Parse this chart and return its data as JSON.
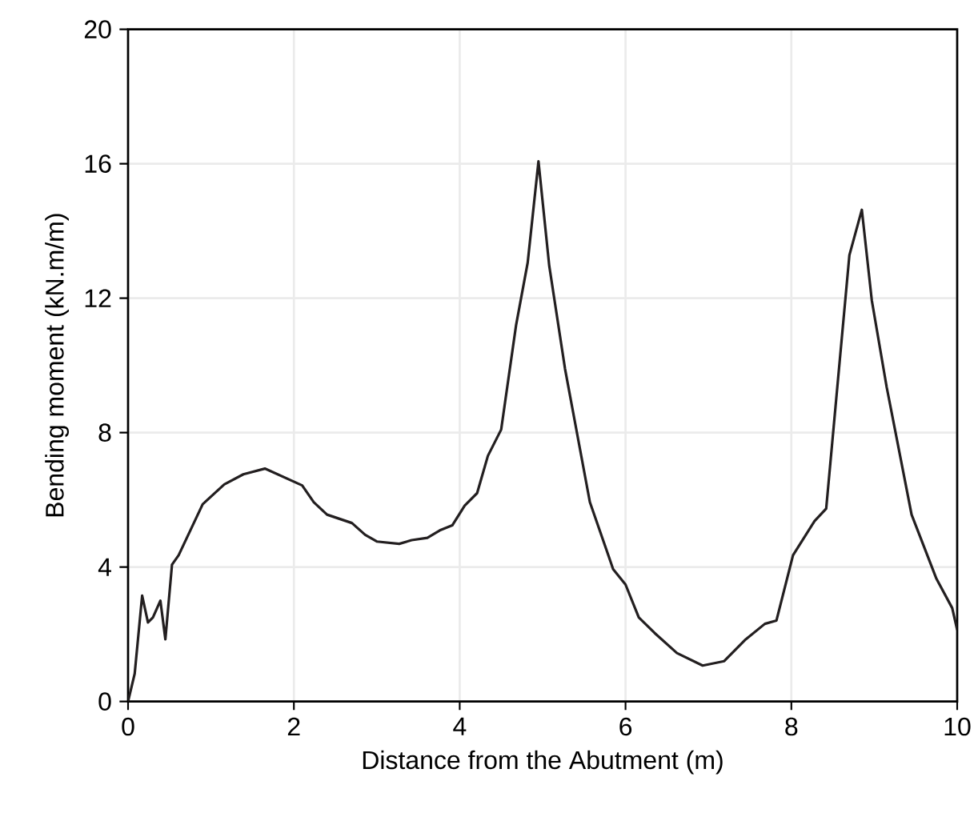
{
  "chart_data": {
    "type": "line",
    "xlabel": "Distance from the Abutment (m)",
    "ylabel": "Bending moment (kN.m/m)",
    "xlim": [
      0,
      10
    ],
    "ylim": [
      0,
      20
    ],
    "xticks": [
      0,
      2,
      4,
      6,
      8,
      10
    ],
    "yticks": [
      0,
      4,
      8,
      12,
      16,
      20
    ],
    "grid": true,
    "marker": "none",
    "line_style": "solid",
    "series": [
      {
        "color": "#231f20",
        "x": [
          0,
          0.08,
          0.17,
          0.24,
          0.3,
          0.39,
          0.45,
          0.53,
          0.61,
          0.9,
          1.16,
          1.39,
          1.65,
          2.1,
          2.24,
          2.4,
          2.7,
          2.86,
          3.0,
          3.27,
          3.42,
          3.61,
          3.76,
          3.91,
          4.06,
          4.21,
          4.34,
          4.5,
          4.68,
          4.82,
          4.95,
          5.08,
          5.27,
          5.57,
          5.85,
          6.0,
          6.16,
          6.35,
          6.62,
          6.93,
          7.19,
          7.45,
          7.68,
          7.82,
          8.02,
          8.28,
          8.42,
          8.7,
          8.85,
          8.97,
          9.15,
          9.45,
          9.75,
          9.94,
          10
        ],
        "values": [
          0,
          0.83,
          3.15,
          2.35,
          2.5,
          3.0,
          1.85,
          4.07,
          4.35,
          5.87,
          6.46,
          6.76,
          6.93,
          6.43,
          5.93,
          5.56,
          5.31,
          4.96,
          4.76,
          4.69,
          4.8,
          4.87,
          5.09,
          5.24,
          5.83,
          6.2,
          7.31,
          8.09,
          11.2,
          13.06,
          16.07,
          12.96,
          9.9,
          5.93,
          3.94,
          3.48,
          2.5,
          2.04,
          1.44,
          1.07,
          1.2,
          1.85,
          2.31,
          2.41,
          4.35,
          5.37,
          5.74,
          13.28,
          14.63,
          11.94,
          9.35,
          5.56,
          3.65,
          2.78,
          2.13
        ]
      }
    ]
  }
}
